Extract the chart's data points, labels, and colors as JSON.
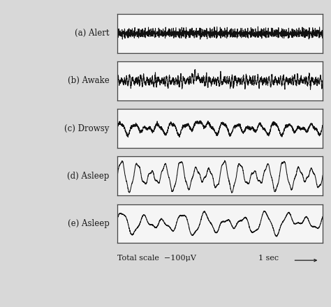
{
  "background_color": "#d8d8d8",
  "panel_bg": "#f5f5f5",
  "line_color": "#111111",
  "labels": [
    "(a) Alert",
    "(b) Awake",
    "(c) Drowsy",
    "(d) Asleep",
    "(e) Asleep"
  ],
  "bottom_label_left": "Total scale  −100μV",
  "bottom_label_right": "1 sec",
  "fig_width": 4.74,
  "fig_height": 4.4,
  "n_points": 2000,
  "ylim_scale": 1.0
}
